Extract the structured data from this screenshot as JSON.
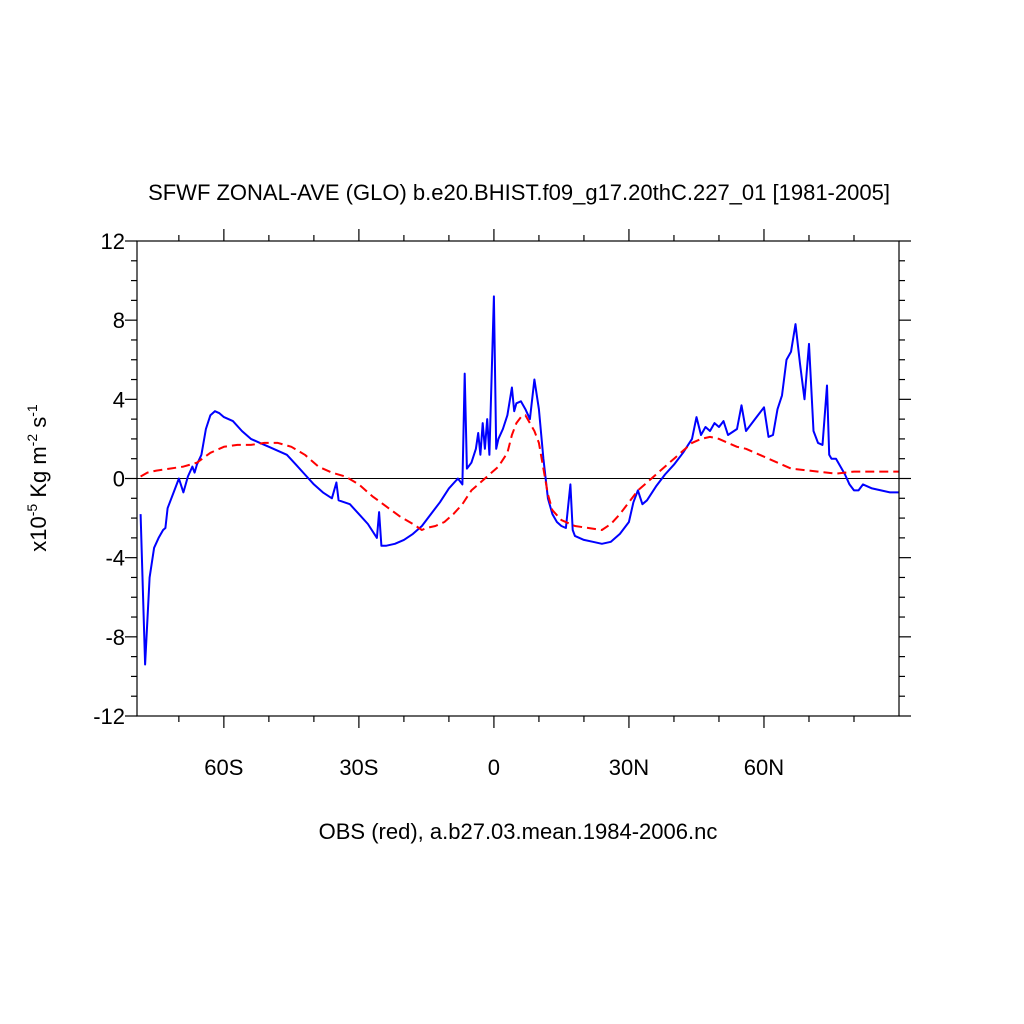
{
  "chart_data": {
    "type": "line",
    "title": "SFWF ZONAL-AVE (GLO) b.e20.BHIST.f09_g17.20thC.227_01 [1981-2005]",
    "x_label": "OBS (red), a.b27.03.mean.1984-2006.nc",
    "y_label": {
      "base": [
        "x10",
        " Kg m",
        " s"
      ],
      "exponents": [
        "-5",
        "-2",
        "-1"
      ]
    },
    "xlim": [
      -79.3,
      90
    ],
    "ylim": [
      -12,
      12
    ],
    "xticks": [
      {
        "value": -60,
        "label": "60S"
      },
      {
        "value": -30,
        "label": "30S"
      },
      0,
      {
        "value": 30,
        "label": "30N"
      },
      {
        "value": 60,
        "label": "60N"
      }
    ],
    "xminorticks": [
      -70,
      -50,
      -40,
      -20,
      -10,
      10,
      20,
      40,
      50,
      70,
      80
    ],
    "yticks": [
      -12,
      -8,
      -4,
      0,
      4,
      8,
      12
    ],
    "yminorticks": [
      -11,
      -10,
      -9,
      -7,
      -6,
      -5,
      -3,
      -2,
      -1,
      1,
      2,
      3,
      5,
      6,
      7,
      9,
      10,
      11
    ],
    "reference_line": 0,
    "series": [
      {
        "color": "#0000ff",
        "dash": false,
        "x": [
          -78.5,
          -77.5,
          -76.5,
          -75.5,
          -74.5,
          -73.5,
          -73,
          -72.5,
          -71,
          -70,
          -69,
          -68,
          -67,
          -66.5,
          -66,
          -65,
          -64,
          -63,
          -62,
          -61,
          -60,
          -58,
          -56,
          -54,
          -52,
          -50,
          -48,
          -46,
          -44,
          -42,
          -40,
          -38,
          -36,
          -35,
          -34.5,
          -32,
          -30,
          -28,
          -26,
          -25.5,
          -25,
          -24,
          -22,
          -20,
          -18,
          -16,
          -14,
          -12,
          -10,
          -8,
          -7,
          -6.5,
          -6,
          -5,
          -4,
          -3.5,
          -3,
          -2.5,
          -2,
          -1.5,
          -1,
          0,
          0.5,
          1,
          2,
          3,
          4,
          4.5,
          5,
          6,
          7,
          8,
          9,
          10,
          11,
          12,
          13,
          14,
          15,
          16,
          17,
          17.5,
          18,
          20,
          22,
          24,
          26,
          28,
          30,
          31,
          32,
          33,
          34,
          36,
          38,
          40,
          42,
          44,
          45,
          46,
          47,
          48,
          49,
          50,
          51,
          52,
          54,
          55,
          56,
          58,
          60,
          61,
          62,
          63,
          64,
          65,
          66,
          67,
          68,
          69,
          70,
          71,
          72,
          73,
          74,
          74.5,
          75,
          76,
          77,
          78,
          79,
          80,
          81,
          82,
          84,
          86,
          88,
          90
        ],
        "values": [
          -1.8,
          -9.4,
          -5,
          -3.5,
          -3,
          -2.6,
          -2.5,
          -1.5,
          -0.6,
          0,
          -0.7,
          0.1,
          0.6,
          0.3,
          0.7,
          1.2,
          2.5,
          3.2,
          3.4,
          3.3,
          3.1,
          2.9,
          2.4,
          2,
          1.8,
          1.6,
          1.4,
          1.2,
          0.7,
          0.2,
          -0.3,
          -0.7,
          -1,
          -0.2,
          -1.1,
          -1.3,
          -1.8,
          -2.3,
          -3,
          -1.7,
          -3.4,
          -3.4,
          -3.3,
          -3.1,
          -2.8,
          -2.4,
          -1.8,
          -1.2,
          -0.5,
          0,
          -0.3,
          5.3,
          0.5,
          0.8,
          1.5,
          2.3,
          1.2,
          2.8,
          1.5,
          3,
          1.2,
          9.2,
          1.5,
          2,
          2.5,
          3.2,
          4.6,
          3.4,
          3.8,
          3.9,
          3.5,
          3,
          5,
          3.5,
          1,
          -1,
          -1.8,
          -2.2,
          -2.4,
          -2.5,
          -0.3,
          -2.6,
          -2.9,
          -3.1,
          -3.2,
          -3.3,
          -3.2,
          -2.8,
          -2.2,
          -1.2,
          -0.6,
          -1.3,
          -1.1,
          -0.4,
          0.2,
          0.7,
          1.3,
          2,
          3.1,
          2.2,
          2.6,
          2.4,
          2.8,
          2.6,
          2.9,
          2.2,
          2.5,
          3.7,
          2.4,
          3,
          3.6,
          2.1,
          2.2,
          3.5,
          4.2,
          6,
          6.4,
          7.8,
          5.8,
          4,
          6.8,
          2.4,
          1.8,
          1.7,
          4.7,
          1.2,
          1,
          1,
          0.6,
          0.2,
          -0.3,
          -0.6,
          -0.6,
          -0.3,
          -0.5,
          -0.6,
          -0.7,
          -0.7
        ]
      },
      {
        "color": "#ff0000",
        "dash": true,
        "x": [
          -78.5,
          -77,
          -75,
          -72,
          -69,
          -66,
          -63,
          -60,
          -57,
          -54,
          -51,
          -48,
          -45,
          -42,
          -39,
          -36,
          -33,
          -30,
          -27,
          -24,
          -21,
          -18,
          -16,
          -15,
          -13,
          -11,
          -9,
          -7,
          -5,
          -3,
          -1,
          1,
          3,
          4,
          5,
          6,
          7,
          8,
          9,
          10,
          11,
          12,
          13,
          15,
          18,
          21,
          24,
          26,
          28,
          30,
          32,
          34,
          36,
          38,
          40,
          42,
          44,
          46,
          48,
          50,
          52,
          54,
          56,
          58,
          60,
          62,
          64,
          66,
          68,
          70,
          72,
          74,
          76,
          78,
          80,
          82,
          84,
          86,
          88,
          90
        ],
        "values": [
          0.1,
          0.3,
          0.4,
          0.5,
          0.6,
          0.8,
          1.3,
          1.6,
          1.7,
          1.7,
          1.8,
          1.8,
          1.6,
          1.2,
          0.6,
          0.3,
          0.1,
          -0.3,
          -0.9,
          -1.4,
          -1.9,
          -2.3,
          -2.6,
          -2.5,
          -2.4,
          -2.2,
          -1.8,
          -1.3,
          -0.6,
          -0.2,
          0.2,
          0.6,
          1.3,
          2.2,
          2.8,
          3.1,
          3.2,
          2.8,
          2.4,
          1.8,
          0.5,
          -0.8,
          -1.6,
          -2.1,
          -2.4,
          -2.5,
          -2.6,
          -2.3,
          -1.8,
          -1.2,
          -0.6,
          -0.2,
          0.2,
          0.6,
          1,
          1.4,
          1.8,
          2,
          2.1,
          2,
          1.8,
          1.6,
          1.5,
          1.3,
          1.1,
          0.9,
          0.7,
          0.5,
          0.45,
          0.4,
          0.35,
          0.3,
          0.25,
          0.3,
          0.35,
          0.35,
          0.35,
          0.35,
          0.35,
          0.35
        ]
      }
    ]
  }
}
